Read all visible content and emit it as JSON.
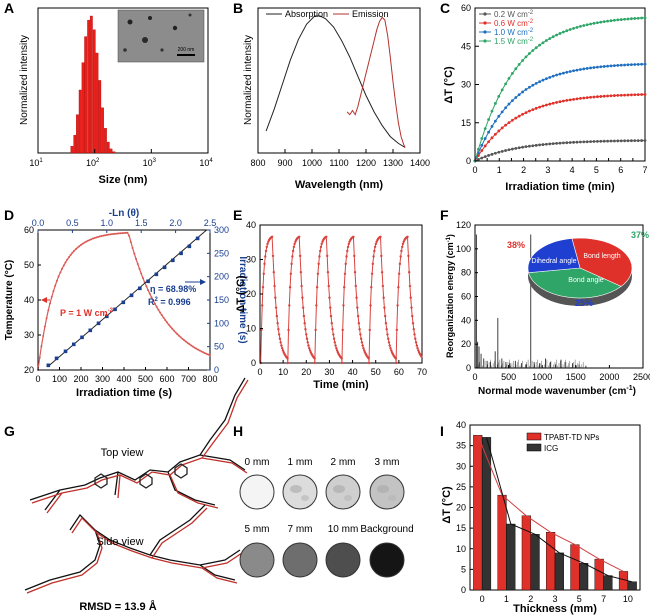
{
  "colors": {
    "red": "#e0302a",
    "black": "#222222",
    "blue": "#1f6fc0",
    "green": "#2fa567",
    "gray": "#555555",
    "darkblue": "#1a3f8f",
    "lightred": "#d96a6a"
  },
  "panel_labels": [
    "A",
    "B",
    "C",
    "D",
    "E",
    "F",
    "G",
    "H",
    "I"
  ],
  "chart_data": [
    {
      "id": "A",
      "type": "bar",
      "xlabel": "Size (nm)",
      "ylabel": "Normalized intensity",
      "xscale": "log",
      "xlim": [
        10,
        10000
      ],
      "x_ticks": [
        "10",
        "10",
        "10",
        "10"
      ],
      "x_tick_exps": [
        "1",
        "2",
        "3",
        "4"
      ],
      "inset_scale": "200 nm",
      "x": [
        40,
        45,
        50,
        56,
        63,
        70,
        79,
        88,
        99,
        111,
        124,
        139,
        156,
        175,
        196,
        220
      ],
      "values": [
        0.05,
        0.13,
        0.28,
        0.46,
        0.66,
        0.85,
        0.97,
        1.0,
        0.9,
        0.73,
        0.53,
        0.33,
        0.18,
        0.08,
        0.03,
        0.01
      ]
    },
    {
      "id": "B",
      "type": "line",
      "xlabel": "Wavelength (nm)",
      "ylabel": "Normalized intensity",
      "xlim": [
        800,
        1400
      ],
      "x_ticks": [
        "800",
        "900",
        "1000",
        "1100",
        "1200",
        "1300",
        "1400"
      ],
      "legend": [
        "Absorption",
        "Emission"
      ],
      "series": [
        {
          "name": "Absorption",
          "x": [
            830,
            860,
            890,
            920,
            950,
            980,
            1010,
            1030,
            1050,
            1080,
            1110,
            1140,
            1170,
            1200,
            1230,
            1260,
            1290,
            1320,
            1345
          ],
          "y": [
            0.16,
            0.32,
            0.5,
            0.68,
            0.83,
            0.94,
            1.0,
            1.0,
            0.98,
            0.92,
            0.82,
            0.7,
            0.56,
            0.42,
            0.3,
            0.2,
            0.12,
            0.07,
            0.04
          ]
        },
        {
          "name": "Emission",
          "x": [
            1130,
            1140,
            1150,
            1160,
            1170,
            1180,
            1190,
            1200,
            1210,
            1220,
            1230,
            1240,
            1250,
            1260,
            1270,
            1280,
            1290,
            1300,
            1310,
            1320,
            1330,
            1340,
            1345
          ],
          "y": [
            0.3,
            0.28,
            0.31,
            0.28,
            0.34,
            0.42,
            0.5,
            0.58,
            0.66,
            0.74,
            0.82,
            0.9,
            0.96,
            0.99,
            0.97,
            0.86,
            0.7,
            0.52,
            0.36,
            0.22,
            0.12,
            0.06,
            0.04
          ]
        }
      ]
    },
    {
      "id": "C",
      "type": "line",
      "xlabel": "Irradiation time (min)",
      "ylabel": "ΔT (°C)",
      "xlim": [
        0,
        7
      ],
      "ylim": [
        0,
        60
      ],
      "x_ticks": [
        "0",
        "0.5",
        "1",
        "1.5",
        "2",
        "2.5",
        "3",
        "3.5",
        "4",
        "4.5",
        "5",
        "5.5",
        "6",
        "6.5",
        "7"
      ],
      "y_ticks": [
        "0",
        "15",
        "30",
        "45",
        "60"
      ],
      "series": [
        {
          "name": "0.2 W cm",
          "sup": "-2",
          "color": "#555555",
          "plateau": 8.2,
          "rate": 0.55
        },
        {
          "name": "0.6 W cm",
          "sup": "-2",
          "color": "#e0302a",
          "plateau": 26.5,
          "rate": 0.6
        },
        {
          "name": "1.0 W cm",
          "sup": "-2",
          "color": "#1f6fc0",
          "plateau": 38.5,
          "rate": 0.62
        },
        {
          "name": "1.5 W cm",
          "sup": "-2",
          "color": "#2fa567",
          "plateau": 57,
          "rate": 0.6
        }
      ]
    },
    {
      "id": "D",
      "type": "line",
      "xlabel": "Irradiation time (s)",
      "ylabel": "Temperature (°C)",
      "ylabel_right": "Irradiation time (s)",
      "xlabel_top": "-Ln (θ)",
      "xlim": [
        0,
        800
      ],
      "ylim": [
        20,
        60
      ],
      "ylim_right": [
        0,
        300
      ],
      "xlim_top": [
        0,
        2.5
      ],
      "x_ticks": [
        "0",
        "100",
        "200",
        "300",
        "400",
        "500",
        "600",
        "700",
        "800"
      ],
      "y_ticks": [
        "20",
        "30",
        "40",
        "50",
        "60"
      ],
      "y_ticks_right": [
        "0",
        "50",
        "100",
        "150",
        "200",
        "250",
        "300"
      ],
      "x_ticks_top": [
        "0.0",
        "0.5",
        "1.0",
        "1.5",
        "2.0",
        "2.5"
      ],
      "power_label": "P = 1 W cm",
      "power_sup": "-2",
      "eta_label": "η = 68.98%",
      "r2_label": "R",
      "r2_sup": "2",
      "r2_value": " = 0.996",
      "heating_plateau": 59.5,
      "t_off": 420,
      "fit_points_ln": [
        0.15,
        0.27,
        0.4,
        0.52,
        0.64,
        0.76,
        0.88,
        1.0,
        1.12,
        1.24,
        1.36,
        1.48,
        1.6,
        1.72,
        1.84,
        1.96,
        2.08,
        2.2,
        2.32
      ],
      "fit_points_t": [
        10,
        25,
        40,
        55,
        70,
        85,
        100,
        115,
        130,
        145,
        160,
        175,
        190,
        205,
        220,
        235,
        250,
        265,
        282
      ]
    },
    {
      "id": "E",
      "type": "line",
      "xlabel": "Time (min)",
      "ylabel": "ΔT (°C)",
      "xlim": [
        0,
        70
      ],
      "ylim": [
        0,
        40
      ],
      "x_ticks": [
        "0",
        "10",
        "20",
        "30",
        "40",
        "50",
        "60",
        "70"
      ],
      "y_ticks": [
        "0",
        "10",
        "20",
        "30",
        "40"
      ],
      "cycles": 6,
      "cycle_period": 11.7,
      "peak": 37,
      "rise_time": 5
    },
    {
      "id": "F",
      "type": "bar",
      "xlabel": "Normal mode wavenumber (cm",
      "xlabel_sup": "-1",
      "xlabel_end": ")",
      "ylabel": "Reorganization energy (cm",
      "ylabel_sup": "-1",
      "ylabel_end": ")",
      "xlim": [
        0,
        2500
      ],
      "ylim": [
        0,
        120
      ],
      "x_ticks": [
        "0",
        "500",
        "1000",
        "1500",
        "2000",
        "2500"
      ],
      "y_ticks": [
        "0",
        "20",
        "40",
        "60",
        "80",
        "100",
        "120"
      ],
      "spikes": [
        [
          20,
          112
        ],
        [
          40,
          22
        ],
        [
          60,
          18
        ],
        [
          90,
          12
        ],
        [
          130,
          8
        ],
        [
          180,
          6
        ],
        [
          230,
          5
        ],
        [
          300,
          14
        ],
        [
          340,
          42
        ],
        [
          400,
          8
        ],
        [
          460,
          5
        ],
        [
          520,
          4
        ],
        [
          600,
          6
        ],
        [
          690,
          4
        ],
        [
          760,
          3
        ],
        [
          830,
          112
        ],
        [
          880,
          5
        ],
        [
          960,
          4
        ],
        [
          1050,
          8
        ],
        [
          1120,
          5
        ],
        [
          1200,
          3
        ],
        [
          1280,
          7
        ],
        [
          1350,
          5
        ],
        [
          1450,
          4
        ],
        [
          1550,
          3
        ],
        [
          1650,
          2
        ]
      ],
      "pie": {
        "slices": [
          {
            "name": "Dihedral angle",
            "pct": "38%",
            "value": 38,
            "color": "#e0302a"
          },
          {
            "name": "Bond length",
            "pct": "37%",
            "value": 37,
            "color": "#2fa567"
          },
          {
            "name": "Bond angle",
            "pct": "25%",
            "value": 25,
            "color": "#1f3fd0"
          }
        ]
      }
    },
    {
      "id": "I",
      "type": "bar",
      "xlabel": "Thickness (mm)",
      "ylabel": "ΔT (°C)",
      "ylim": [
        0,
        40
      ],
      "categories": [
        "0",
        "1",
        "2",
        "3",
        "5",
        "7",
        "10"
      ],
      "y_ticks": [
        "0",
        "5",
        "10",
        "15",
        "20",
        "25",
        "30",
        "35",
        "40"
      ],
      "series": [
        {
          "name": "TPABT-TD NPs",
          "values": [
            37.5,
            23,
            18,
            14,
            11,
            7.5,
            4.5
          ],
          "color": "#e0302a"
        },
        {
          "name": "ICG",
          "values": [
            37,
            16,
            13.5,
            9,
            6.5,
            3.5,
            2
          ],
          "color": "#333333"
        }
      ]
    }
  ],
  "panelG": {
    "top_label": "Top view",
    "side_label": "Side view",
    "rmsd": "RMSD = 13.9 Å"
  },
  "panelH": {
    "labels": [
      "0 mm",
      "1 mm",
      "2 mm",
      "3 mm",
      "5 mm",
      "7 mm",
      "10 mm",
      "Background"
    ],
    "shades": [
      "#f4f4f4",
      "#dcdcdc",
      "#cfcfcf",
      "#c3c3c3",
      "#8a8a8a",
      "#6e6e6e",
      "#4e4e4e",
      "#151515"
    ]
  }
}
